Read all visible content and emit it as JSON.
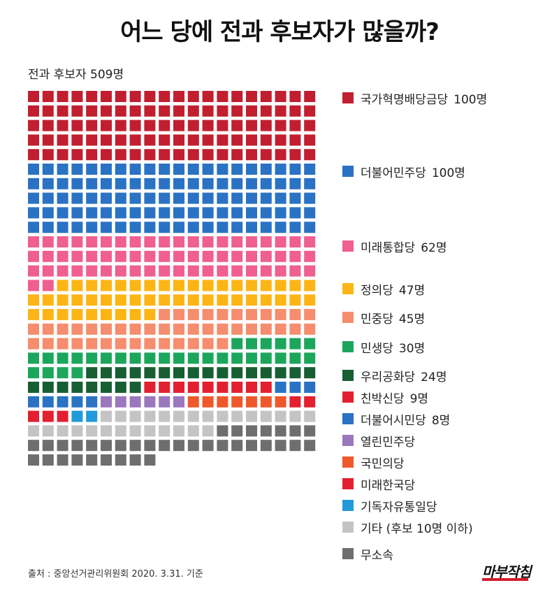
{
  "title": "어느 당에 전과 후보자가 많을까?",
  "subtitle": "전과 후보자 509명",
  "source": "출처 :  중앙선거관리위원회 2020. 3.31. 기준",
  "brand": "마부작침",
  "brand_color": "#d41c2c",
  "chart_data": {
    "type": "waffle",
    "title": "어느 당에 전과 후보자가 많을까?",
    "subtitle": "전과 후보자 509명",
    "total": 509,
    "units_per_square": 1,
    "columns": 20,
    "legend_position": "right",
    "series": [
      {
        "name": "국가혁명배당금당",
        "value": 100,
        "count_label": "100명",
        "color": "#c11f2f"
      },
      {
        "name": "더불어민주당",
        "value": 100,
        "count_label": "100명",
        "color": "#2a72c4"
      },
      {
        "name": "미래통합당",
        "value": 62,
        "count_label": "62명",
        "color": "#ef5f8f"
      },
      {
        "name": "정의당",
        "value": 47,
        "count_label": "47명",
        "color": "#fdb515"
      },
      {
        "name": "민중당",
        "value": 45,
        "count_label": "45명",
        "color": "#f58d6e"
      },
      {
        "name": "민생당",
        "value": 30,
        "count_label": "30명",
        "color": "#1ca65c"
      },
      {
        "name": "우리공화당",
        "value": 24,
        "count_label": "24명",
        "color": "#175e33"
      },
      {
        "name": "친박신당",
        "value": 9,
        "count_label": "9명",
        "color": "#e3202f"
      },
      {
        "name": "더불어시민당",
        "value": 8,
        "count_label": "8명",
        "color": "#2a72c4"
      },
      {
        "name": "열린민주당",
        "value": 6,
        "count_label": "",
        "color": "#9b78bd"
      },
      {
        "name": "국민의당",
        "value": 7,
        "count_label": "",
        "color": "#f0582c"
      },
      {
        "name": "미래한국당",
        "value": 5,
        "count_label": "",
        "color": "#e3202f"
      },
      {
        "name": "기독자유통일당",
        "value": 2,
        "count_label": "",
        "color": "#2299d8"
      },
      {
        "name": "기타 (후보 10명 이하)",
        "value": 28,
        "count_label": "",
        "color": "#c4c4c4"
      },
      {
        "name": "무소속",
        "value": 36,
        "count_label": "",
        "color": "#6e6e6e"
      }
    ]
  }
}
